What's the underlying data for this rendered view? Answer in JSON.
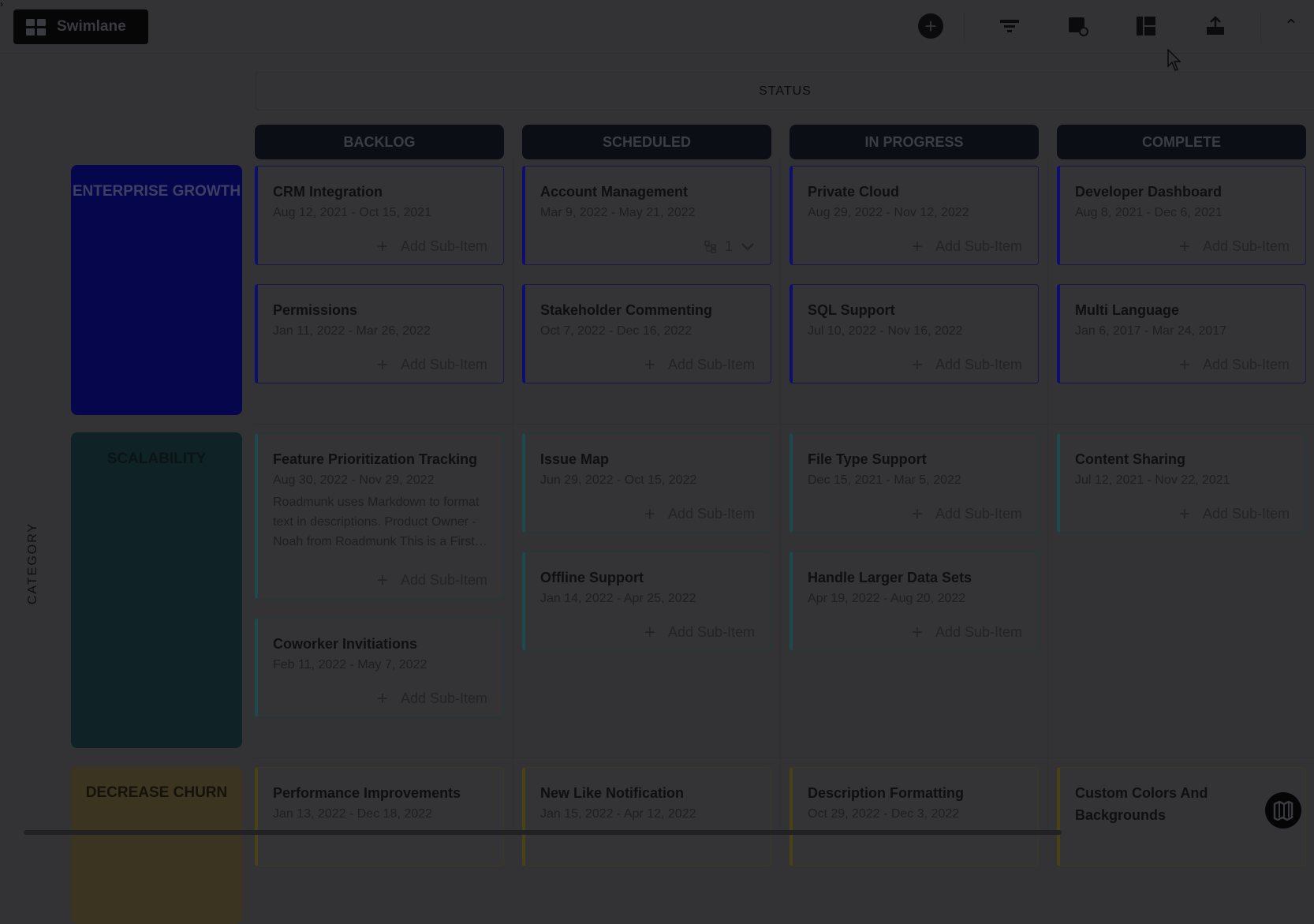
{
  "toolbar": {
    "view_label": "Swimlane",
    "icons": [
      "add-icon",
      "filter-icon",
      "settings-link-icon",
      "layout-icon",
      "export-icon",
      "collapse-icon"
    ]
  },
  "status_label": "STATUS",
  "category_label": "CATEGORY",
  "columns": [
    "BACKLOG",
    "SCHEDULED",
    "IN PROGRESS",
    "COMPLETE"
  ],
  "add_sub_item_label": "Add Sub-Item",
  "rows": [
    {
      "label": "ENTERPRISE GROWTH",
      "color": "#06064c",
      "label_text_color": "#3f3f62",
      "card_border": "#17174a",
      "accent": "#0d0d72",
      "cells": [
        [
          {
            "title": "CRM Integration",
            "dates": "Aug 12, 2021 - Oct 15, 2021"
          },
          {
            "title": "Permissions",
            "dates": "Jan 11, 2022 - Mar 26, 2022"
          }
        ],
        [
          {
            "title": "Account Management",
            "dates": "Mar 9, 2022 - May 21, 2022",
            "subitems": "1"
          },
          {
            "title": "Stakeholder Commenting",
            "dates": "Oct 7, 2022 - Dec 16, 2022"
          }
        ],
        [
          {
            "title": "Private Cloud",
            "dates": "Aug 29, 2022 - Nov 12, 2022"
          },
          {
            "title": "SQL Support",
            "dates": "Jul 10, 2022 - Nov 16, 2022"
          }
        ],
        [
          {
            "title": "Developer Dashboard",
            "dates": "Aug 8, 2021 - Dec 6, 2021"
          },
          {
            "title": "Multi Language",
            "dates": "Jan 6, 2017 - Mar 24, 2017"
          }
        ]
      ]
    },
    {
      "label": "SCALABILITY",
      "color": "#0f2226",
      "label_text_color": "#0a1416",
      "card_border": "#1e3a3d",
      "accent": "#1d4a4e",
      "cells": [
        [
          {
            "title": "Feature Prioritization Tracking",
            "dates": "Aug 30, 2022 - Nov 29, 2022",
            "description": "Roadmunk uses Markdown to format text in descriptions. Product Owner - Noah from Roadmunk This is a First level heading"
          },
          {
            "title": "Coworker Invitiations",
            "dates": "Feb 11, 2022 - May 7, 2022"
          }
        ],
        [
          {
            "title": "Issue Map",
            "dates": "Jun 29, 2022 - Oct 15, 2022"
          },
          {
            "title": "Offline Support",
            "dates": "Jan 14, 2022 - Apr 25, 2022"
          }
        ],
        [
          {
            "title": "File Type Support",
            "dates": "Dec 15, 2021 - Mar 5, 2022"
          },
          {
            "title": "Handle Larger Data Sets",
            "dates": "Apr 19, 2022 - Aug 20, 2022"
          }
        ],
        [
          {
            "title": "Content Sharing",
            "dates": "Jul 12, 2021 - Nov 22, 2021"
          }
        ]
      ]
    },
    {
      "label": "DECREASE CHURN",
      "color": "#3a3420",
      "label_text_color": "#14120a",
      "card_border": "#3c3823",
      "accent": "#4a4116",
      "cells": [
        [
          {
            "title": "Performance Improvements",
            "dates": "Jan 13, 2022 - Dec 18, 2022"
          }
        ],
        [
          {
            "title": "New Like Notification",
            "dates": "Jan 15, 2022 - Apr 12, 2022"
          }
        ],
        [
          {
            "title": "Description Formatting",
            "dates": "Oct 29, 2022 - Dec 3, 2022"
          }
        ],
        [
          {
            "title": "Custom Colors And Backgrounds",
            "dates": ""
          }
        ]
      ]
    }
  ]
}
